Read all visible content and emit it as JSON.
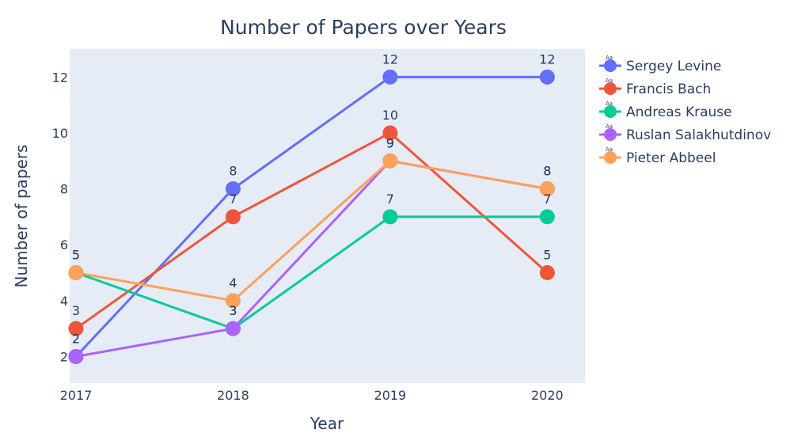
{
  "chart_data": {
    "type": "line",
    "title": "Number of Papers over Years",
    "xlabel": "Year",
    "ylabel": "Number of papers",
    "x": [
      "2017",
      "2018",
      "2019",
      "2020"
    ],
    "xlim": [
      2016.96,
      2020.24
    ],
    "ylim": [
      1.05,
      13.0
    ],
    "yticks": [
      2,
      4,
      6,
      8,
      10,
      12
    ],
    "grid": false,
    "plot_background": "#e5ecf6",
    "legend_position": "top-right",
    "legend_marker_text": "Aa",
    "series": [
      {
        "name": "Sergey Levine",
        "color": "#636efa",
        "values": [
          2,
          8,
          12,
          12
        ]
      },
      {
        "name": "Francis Bach",
        "color": "#ef553b",
        "values": [
          3,
          7,
          10,
          5
        ]
      },
      {
        "name": "Andreas Krause",
        "color": "#00cc96",
        "values": [
          5,
          3,
          7,
          7
        ]
      },
      {
        "name": "Ruslan Salakhutdinov",
        "color": "#ab63fa",
        "values": [
          2,
          3,
          9,
          8
        ]
      },
      {
        "name": "Pieter Abbeel",
        "color": "#ffa15a",
        "values": [
          5,
          4,
          9,
          8
        ]
      }
    ]
  }
}
